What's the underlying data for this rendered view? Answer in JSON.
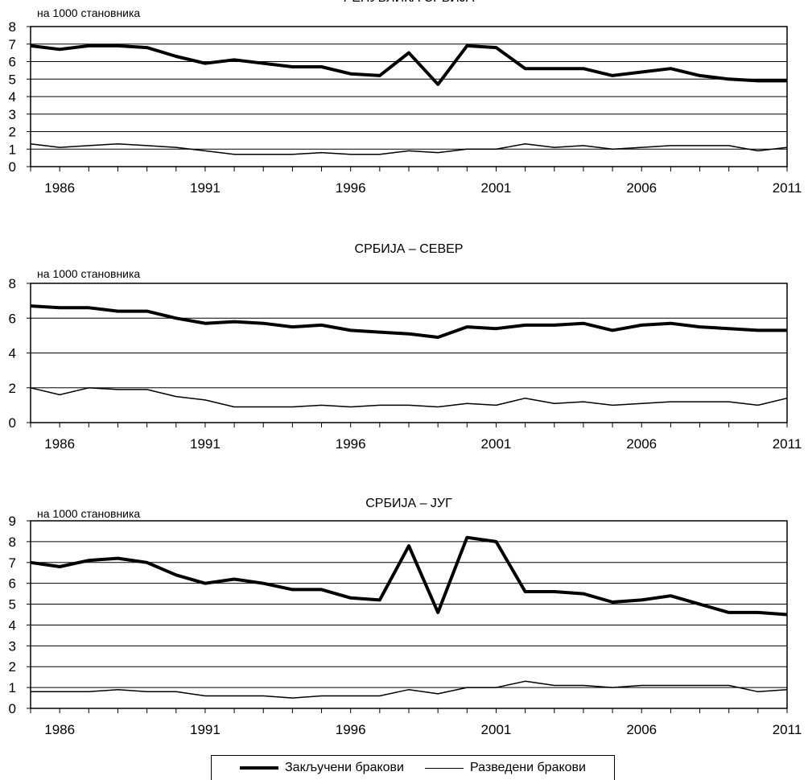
{
  "unit_label": "на 1000 становника",
  "legend": {
    "items": [
      {
        "label": "Закључени бракови"
      },
      {
        "label": "Разведени бракови"
      }
    ]
  },
  "chart_data": [
    {
      "type": "line",
      "title": "РЕПУБЛИКА СРБИЈА",
      "ylabel": "на 1000 становника",
      "xlabel": "",
      "x": [
        1985,
        1986,
        1987,
        1988,
        1989,
        1990,
        1991,
        1992,
        1993,
        1994,
        1995,
        1996,
        1997,
        1998,
        1999,
        2000,
        2001,
        2002,
        2003,
        2004,
        2005,
        2006,
        2007,
        2008,
        2009,
        2010,
        2011
      ],
      "x_ticks": [
        1986,
        1991,
        1996,
        2001,
        2006,
        2011
      ],
      "ylim": [
        0,
        8
      ],
      "y_ticks": [
        0,
        1,
        2,
        3,
        4,
        5,
        6,
        7,
        8
      ],
      "grid": true,
      "series": [
        {
          "name": "Закључени бракови",
          "values": [
            6.9,
            6.7,
            6.9,
            6.9,
            6.8,
            6.3,
            5.9,
            6.1,
            5.9,
            5.7,
            5.7,
            5.3,
            5.2,
            6.5,
            4.7,
            6.9,
            6.8,
            5.6,
            5.6,
            5.6,
            5.2,
            5.4,
            5.6,
            5.2,
            5.0,
            4.9,
            4.9
          ]
        },
        {
          "name": "Разведени бракови",
          "values": [
            1.3,
            1.1,
            1.2,
            1.3,
            1.2,
            1.1,
            0.9,
            0.7,
            0.7,
            0.7,
            0.8,
            0.7,
            0.7,
            0.9,
            0.8,
            1.0,
            1.0,
            1.3,
            1.1,
            1.2,
            1.0,
            1.1,
            1.2,
            1.2,
            1.2,
            0.9,
            1.1
          ]
        }
      ]
    },
    {
      "type": "line",
      "title": "СРБИЈА – СЕВЕР",
      "ylabel": "на 1000 становника",
      "xlabel": "",
      "x": [
        1985,
        1986,
        1987,
        1988,
        1989,
        1990,
        1991,
        1992,
        1993,
        1994,
        1995,
        1996,
        1997,
        1998,
        1999,
        2000,
        2001,
        2002,
        2003,
        2004,
        2005,
        2006,
        2007,
        2008,
        2009,
        2010,
        2011
      ],
      "x_ticks": [
        1986,
        1991,
        1996,
        2001,
        2006,
        2011
      ],
      "ylim": [
        0,
        8
      ],
      "y_ticks": [
        0,
        2,
        4,
        6,
        8
      ],
      "grid": true,
      "series": [
        {
          "name": "Закључени бракови",
          "values": [
            6.7,
            6.6,
            6.6,
            6.4,
            6.4,
            6.0,
            5.7,
            5.8,
            5.7,
            5.5,
            5.6,
            5.3,
            5.2,
            5.1,
            4.9,
            5.5,
            5.4,
            5.6,
            5.6,
            5.7,
            5.3,
            5.6,
            5.7,
            5.5,
            5.4,
            5.3,
            5.3
          ]
        },
        {
          "name": "Разведени бракови",
          "values": [
            2.0,
            1.6,
            2.0,
            1.9,
            1.9,
            1.5,
            1.3,
            0.9,
            0.9,
            0.9,
            1.0,
            0.9,
            1.0,
            1.0,
            0.9,
            1.1,
            1.0,
            1.4,
            1.1,
            1.2,
            1.0,
            1.1,
            1.2,
            1.2,
            1.2,
            1.0,
            1.4
          ]
        }
      ]
    },
    {
      "type": "line",
      "title": "СРБИЈА – ЈУГ",
      "ylabel": "на 1000 становника",
      "xlabel": "",
      "x": [
        1985,
        1986,
        1987,
        1988,
        1989,
        1990,
        1991,
        1992,
        1993,
        1994,
        1995,
        1996,
        1997,
        1998,
        1999,
        2000,
        2001,
        2002,
        2003,
        2004,
        2005,
        2006,
        2007,
        2008,
        2009,
        2010,
        2011
      ],
      "x_ticks": [
        1986,
        1991,
        1996,
        2001,
        2006,
        2011
      ],
      "ylim": [
        0,
        9
      ],
      "y_ticks": [
        0,
        1,
        2,
        3,
        4,
        5,
        6,
        7,
        8,
        9
      ],
      "grid": true,
      "series": [
        {
          "name": "Закључени бракови",
          "values": [
            7.0,
            6.8,
            7.1,
            7.2,
            7.0,
            6.4,
            6.0,
            6.2,
            6.0,
            5.7,
            5.7,
            5.3,
            5.2,
            7.8,
            4.6,
            8.2,
            8.0,
            5.6,
            5.6,
            5.5,
            5.1,
            5.2,
            5.4,
            5.0,
            4.6,
            4.6,
            4.5
          ]
        },
        {
          "name": "Разведени бракови",
          "values": [
            0.8,
            0.8,
            0.8,
            0.9,
            0.8,
            0.8,
            0.6,
            0.6,
            0.6,
            0.5,
            0.6,
            0.6,
            0.6,
            0.9,
            0.7,
            1.0,
            1.0,
            1.3,
            1.1,
            1.1,
            1.0,
            1.1,
            1.1,
            1.1,
            1.1,
            0.8,
            0.9
          ]
        }
      ]
    }
  ]
}
